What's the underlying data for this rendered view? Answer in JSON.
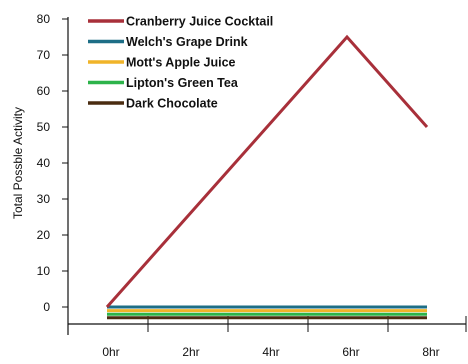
{
  "chart_data": {
    "type": "line",
    "title": "",
    "xlabel": "",
    "ylabel": "Total Possble Activity",
    "x": [
      "0hr",
      "2hr",
      "4hr",
      "6hr",
      "8hr"
    ],
    "x_values": [
      0,
      2,
      4,
      6,
      8
    ],
    "ylim": [
      -5,
      80
    ],
    "yticks": [
      0,
      10,
      20,
      30,
      40,
      50,
      60,
      70,
      80
    ],
    "grid": false,
    "legend_position": "top-left",
    "series": [
      {
        "name": "Cranberry Juice Cocktail",
        "color": "#a8303a",
        "points": [
          [
            0,
            0
          ],
          [
            6,
            75
          ],
          [
            8,
            50
          ]
        ]
      },
      {
        "name": "Welch's Grape Drink",
        "color": "#1d6e86",
        "points": [
          [
            0,
            0
          ],
          [
            8,
            0
          ]
        ]
      },
      {
        "name": "Mott's Apple Juice",
        "color": "#f0b429",
        "points": [
          [
            0,
            -1
          ],
          [
            8,
            -1
          ]
        ]
      },
      {
        "name": "Lipton's Green Tea",
        "color": "#2db34a",
        "points": [
          [
            0,
            -2
          ],
          [
            8,
            -2
          ]
        ]
      },
      {
        "name": "Dark Chocolate",
        "color": "#4a2c10",
        "points": [
          [
            0,
            -3
          ],
          [
            8,
            -3
          ]
        ]
      }
    ]
  }
}
